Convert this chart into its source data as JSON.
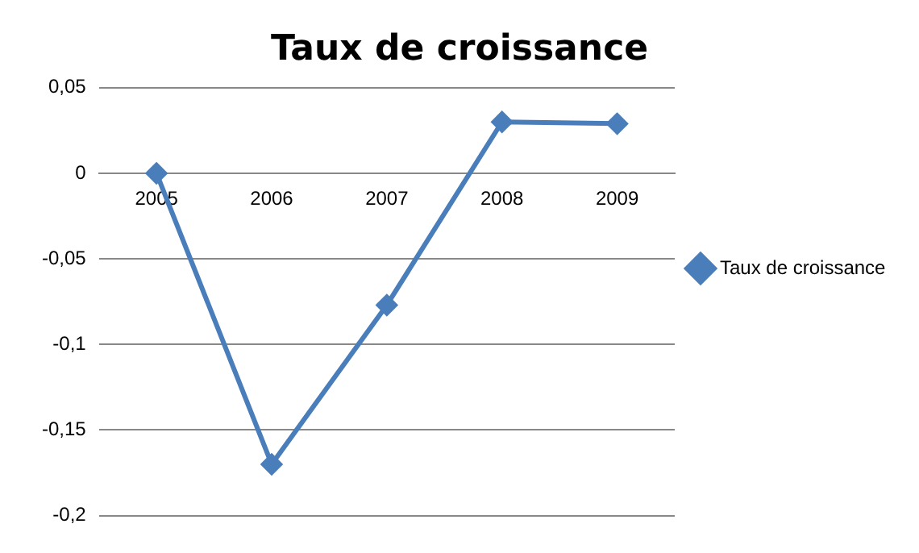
{
  "chart_data": {
    "type": "line",
    "title": "Taux de croissance",
    "categories": [
      "2005",
      "2006",
      "2007",
      "2008",
      "2009"
    ],
    "series": [
      {
        "name": "Taux de croissance",
        "color": "#4a7ebb",
        "values": [
          0,
          -0.17,
          -0.077,
          0.03,
          0.029
        ]
      }
    ],
    "ylim": [
      -0.2,
      0.05
    ],
    "yticks": [
      {
        "value": -0.2,
        "label": "-0,2"
      },
      {
        "value": -0.15,
        "label": "-0,15"
      },
      {
        "value": -0.1,
        "label": "-0,1"
      },
      {
        "value": -0.05,
        "label": "-0,05"
      },
      0,
      {
        "value": 0.05,
        "label": "0,05"
      }
    ],
    "grid": "y",
    "legend": "right",
    "marker": "diamond",
    "line_style": "solid"
  }
}
